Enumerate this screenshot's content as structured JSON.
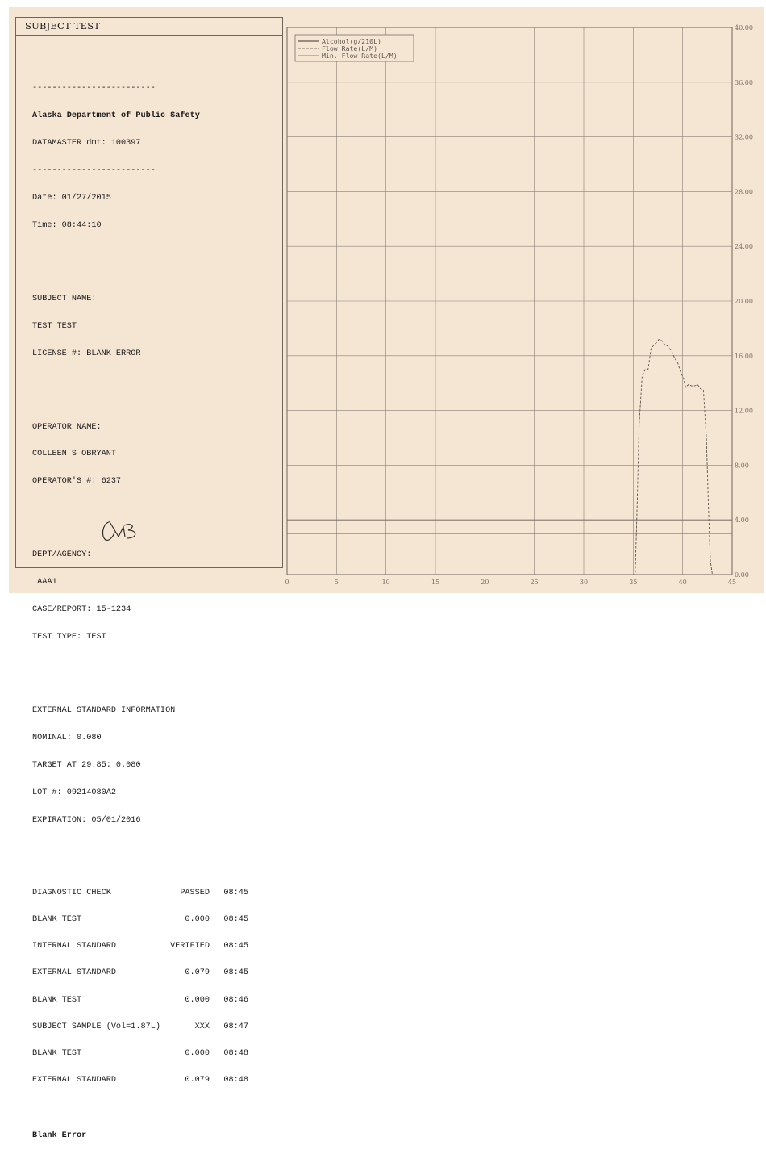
{
  "report": {
    "title": "SUBJECT TEST",
    "separator": "-------------------------",
    "agency_name": "Alaska Department of Public Safety",
    "instrument": "DATAMASTER dmt: 100397",
    "date": "Date: 01/27/2015",
    "time": "Time: 08:44:10",
    "subject_name_label": "SUBJECT NAME:",
    "subject_name": "TEST TEST",
    "license": "LICENSE #: BLANK ERROR",
    "operator_name_label": "OPERATOR NAME:",
    "operator_name": "COLLEEN S OBRYANT",
    "operator_number": "OPERATOR'S #: 6237",
    "dept_label": "DEPT/AGENCY:",
    "dept": " AAA1",
    "case_report": "CASE/REPORT: 15-1234",
    "test_type": "TEST TYPE: TEST",
    "ext_std_heading": "EXTERNAL STANDARD INFORMATION",
    "nominal": "NOMINAL: 0.080",
    "target": "TARGET AT 29.85: 0.080",
    "lot": "LOT #: 09214080A2",
    "expiration": "EXPIRATION: 05/01/2016",
    "sequence": [
      {
        "label": "DIAGNOSTIC CHECK",
        "value": "PASSED",
        "time": "08:45"
      },
      {
        "label": "BLANK TEST",
        "value": "0.000",
        "time": "08:45"
      },
      {
        "label": "INTERNAL STANDARD",
        "value": "VERIFIED",
        "time": "08:45"
      },
      {
        "label": "EXTERNAL STANDARD",
        "value": "0.079",
        "time": "08:45"
      },
      {
        "label": "BLANK TEST",
        "value": "0.000",
        "time": "08:46"
      },
      {
        "label": "SUBJECT SAMPLE (Vol=1.87L)",
        "value": "XXX",
        "time": "08:47"
      },
      {
        "label": "BLANK TEST",
        "value": "0.000",
        "time": "08:48"
      },
      {
        "label": "EXTERNAL STANDARD",
        "value": "0.079",
        "time": "08:48"
      }
    ],
    "result": "Blank Error"
  },
  "chart_data": {
    "type": "line",
    "xlim": [
      0,
      45
    ],
    "ylim": [
      0,
      40
    ],
    "x_ticks": [
      "0",
      "5",
      "10",
      "15",
      "20",
      "25",
      "30",
      "35",
      "40",
      "45"
    ],
    "y_ticks": [
      "0.00",
      "4.00",
      "8.00",
      "12.00",
      "16.00",
      "20.00",
      "24.00",
      "28.00",
      "32.00",
      "36.00",
      "40.00"
    ],
    "y_axis_side": "right",
    "grid": true,
    "legend_position": "top-left",
    "series": [
      {
        "name": "Alcohol(g/210L)",
        "style": "solid",
        "color": "#3a3430",
        "x": [],
        "y": []
      },
      {
        "name": "Flow Rate(L/M)",
        "style": "dashed",
        "color": "#5a524c",
        "x": [
          35.0,
          35.2,
          35.4,
          35.6,
          35.9,
          36.2,
          36.5,
          36.8,
          37.1,
          37.4,
          37.6,
          37.9,
          38.2,
          38.5,
          38.9,
          39.2,
          39.5,
          39.8,
          40.1,
          40.3,
          40.6,
          40.9,
          41.2,
          41.5,
          41.8,
          42.1,
          42.4,
          42.6,
          42.8,
          43.0
        ],
        "y": [
          0.0,
          0.0,
          5.0,
          11.0,
          14.5,
          15.0,
          15.0,
          16.5,
          16.8,
          17.0,
          17.2,
          17.1,
          16.8,
          16.7,
          16.3,
          15.8,
          15.5,
          14.8,
          14.3,
          13.7,
          13.9,
          13.8,
          13.8,
          13.9,
          13.6,
          13.5,
          10.0,
          5.0,
          1.0,
          0.0
        ]
      },
      {
        "name": "Min. Flow Rate(L/M)",
        "style": "solid-thin",
        "color": "#6a625c",
        "x": [
          0,
          45
        ],
        "y": [
          3.0,
          3.0
        ]
      }
    ],
    "extra_hline": {
      "y": 4.0,
      "color": "#6a625c"
    }
  },
  "signature": {
    "initials": "CB"
  }
}
